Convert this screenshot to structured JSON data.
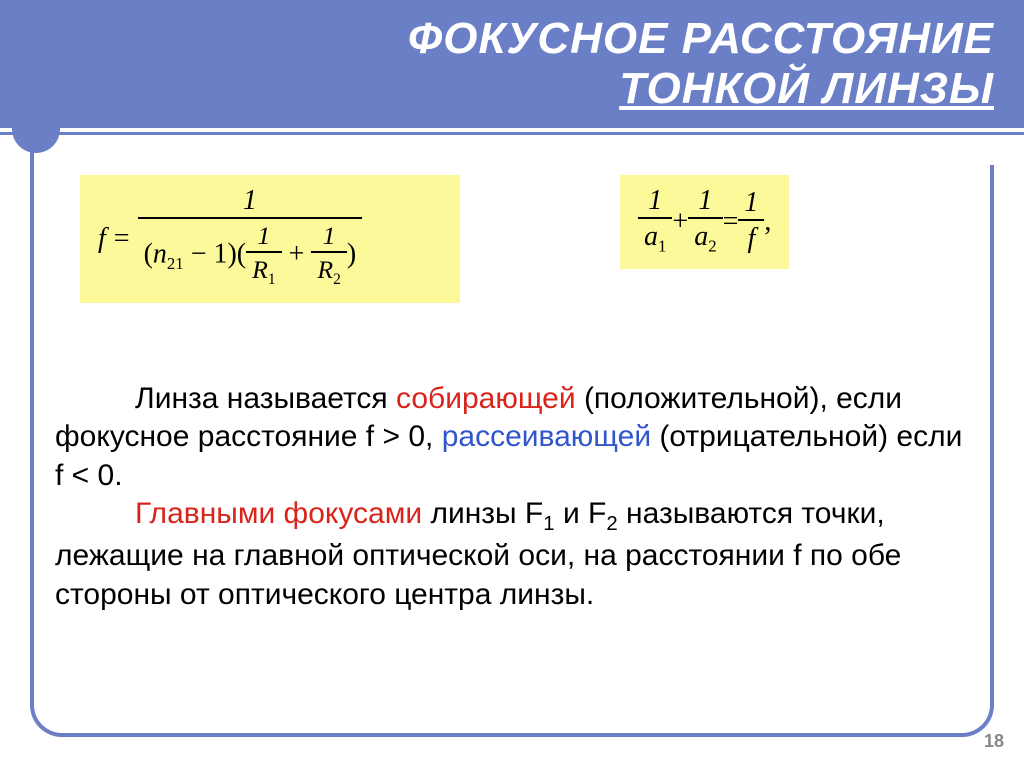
{
  "header": {
    "line1": "ФОКУСНОЕ РАССТОЯНИЕ",
    "line2": "ТОНКОЙ ЛИНЗЫ"
  },
  "formula1": {
    "lhs": "f",
    "eq": "=",
    "num": "1",
    "den_n": "n",
    "den_nsub": "21",
    "den_minus1": " − 1)(",
    "r1_num": "1",
    "r1_den": "R",
    "r1_sub": "1",
    "plus": " + ",
    "r2_num": "1",
    "r2_den": "R",
    "r2_sub": "2",
    "close": ")",
    "open": "("
  },
  "formula2": {
    "a1_num": "1",
    "a1_den": "a",
    "a1_sub": "1",
    "plus": " + ",
    "a2_num": "1",
    "a2_den": "a",
    "a2_sub": "2",
    "eq": " = ",
    "f_num": "1",
    "f_den": "f",
    "comma": ","
  },
  "para": {
    "t1a": "Линза называется ",
    "t1b": "собирающей",
    "t2": " (положительной), если фокусное расстояние  f > 0, ",
    "t3": "рассеивающей",
    "t4": " (отрицательной) если f < 0.",
    "t5a": "Главными фокусами",
    "t5b": " линзы F",
    "t5c": " и F",
    "t5d": " называются точки, лежащие на главной оптической оси, на расстоянии f по обе стороны от оптического центра линзы.",
    "s1": "1",
    "s2": "2"
  },
  "page": "18",
  "colors": {
    "header_bg": "#6b7fc7",
    "formula_bg": "#fbf99a",
    "red": "#d8241a",
    "blue": "#3155cc"
  }
}
